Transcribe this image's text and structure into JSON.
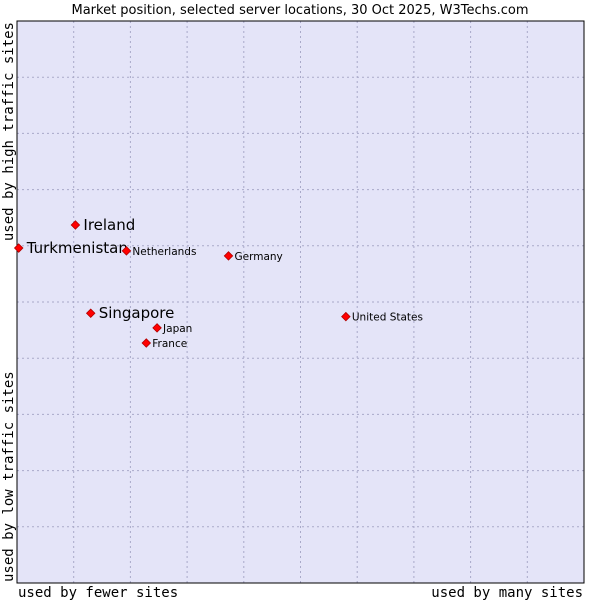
{
  "chart_data": {
    "type": "scatter",
    "title": "Market position, selected server locations, 30 Oct 2025, W3Techs.com",
    "xlabel_left": "used by fewer sites",
    "xlabel_right": "used by many sites",
    "ylabel_bottom": "used by low traffic sites",
    "ylabel_top": "used by high traffic sites",
    "xlim": [
      0,
      100
    ],
    "ylim": [
      0,
      100
    ],
    "grid": true,
    "colors": {
      "plot_bg": "#e4e4f8",
      "point": "#ff0000",
      "grid": "#a9a9c9",
      "border": "#000000"
    },
    "points": [
      {
        "label": "Ireland",
        "x": 10.3,
        "y": 63.7,
        "size": "large"
      },
      {
        "label": "Turkmenistan",
        "x": 0.3,
        "y": 59.6,
        "size": "large"
      },
      {
        "label": "Netherlands",
        "x": 19.3,
        "y": 59.1,
        "size": "small"
      },
      {
        "label": "Germany",
        "x": 37.3,
        "y": 58.2,
        "size": "small"
      },
      {
        "label": "Singapore",
        "x": 13.0,
        "y": 48.0,
        "size": "large"
      },
      {
        "label": "United States",
        "x": 58.0,
        "y": 47.4,
        "size": "small"
      },
      {
        "label": "Japan",
        "x": 24.7,
        "y": 45.4,
        "size": "small"
      },
      {
        "label": "France",
        "x": 22.8,
        "y": 42.7,
        "size": "small"
      }
    ]
  }
}
